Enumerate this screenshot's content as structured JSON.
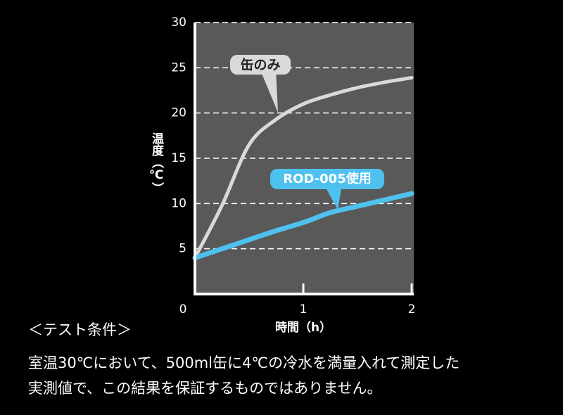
{
  "chart_data": {
    "type": "line",
    "ylabel": "温度（℃）",
    "xlabel": "時間（h）",
    "x": [
      0,
      0.25,
      0.5,
      0.75,
      1,
      1.25,
      1.5,
      1.75,
      2
    ],
    "series": [
      {
        "name": "缶のみ",
        "color": "#d9d9d9",
        "values": [
          4,
          9.8,
          16.5,
          19.3,
          21,
          22,
          22.8,
          23.4,
          23.9
        ]
      },
      {
        "name": "ROD-005使用",
        "color": "#4fc1ee",
        "values": [
          4,
          5,
          6,
          7,
          7.9,
          9,
          9.7,
          10.4,
          11.1
        ]
      }
    ],
    "xlim": [
      0,
      2
    ],
    "ylim": [
      0,
      30
    ],
    "xticks": [
      0,
      1,
      2
    ],
    "yticks": [
      5,
      10,
      15,
      20,
      25,
      30
    ],
    "grid": true
  },
  "conditions": {
    "title": "＜テスト条件＞",
    "lines": [
      "室温30℃において、500ml缶に4℃の冷水を満量入れて測定した",
      "実測値で、この結果を保証するものではありません。"
    ]
  }
}
